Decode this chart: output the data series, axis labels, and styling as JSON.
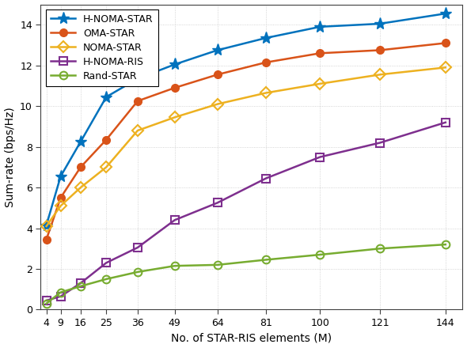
{
  "x": [
    4,
    9,
    16,
    25,
    36,
    49,
    64,
    81,
    100,
    121,
    144
  ],
  "H_NOMA_STAR": [
    4.15,
    6.55,
    8.25,
    10.45,
    11.35,
    12.05,
    12.75,
    13.35,
    13.9,
    14.05,
    14.55
  ],
  "OMA_STAR": [
    3.45,
    5.5,
    7.0,
    8.35,
    10.25,
    10.9,
    11.55,
    12.15,
    12.6,
    12.75,
    13.1
  ],
  "NOMA_STAR": [
    4.1,
    5.1,
    6.0,
    7.0,
    8.8,
    9.45,
    10.1,
    10.65,
    11.1,
    11.55,
    11.9
  ],
  "H_NOMA_RIS": [
    0.45,
    0.65,
    1.3,
    2.3,
    3.05,
    4.4,
    5.25,
    6.45,
    7.5,
    8.2,
    9.2
  ],
  "Rand_STAR": [
    0.3,
    0.85,
    1.15,
    1.5,
    1.85,
    2.15,
    2.2,
    2.45,
    2.7,
    3.0,
    3.2
  ],
  "colors": {
    "H_NOMA_STAR": "#0072BD",
    "OMA_STAR": "#D95319",
    "NOMA_STAR": "#EDB120",
    "H_NOMA_RIS": "#7E2F8E",
    "Rand_STAR": "#77AC30"
  },
  "labels": {
    "H_NOMA_STAR": "H-NOMA-STAR",
    "OMA_STAR": "OMA-STAR",
    "NOMA_STAR": "NOMA-STAR",
    "H_NOMA_RIS": "H-NOMA-RIS",
    "Rand_STAR": "Rand-STAR"
  },
  "xlabel": "No. of STAR-RIS elements (M)",
  "ylabel": "Sum-rate (bps/Hz)",
  "xlim": [
    2,
    150
  ],
  "ylim": [
    0,
    15
  ],
  "yticks": [
    0,
    2,
    4,
    6,
    8,
    10,
    12,
    14
  ],
  "xticks": [
    4,
    9,
    16,
    25,
    36,
    49,
    64,
    81,
    100,
    121,
    144
  ],
  "grid_color": "#c8c8c8",
  "background_color": "#ffffff",
  "linewidth": 1.8,
  "markersize_star": 11,
  "markersize": 7
}
